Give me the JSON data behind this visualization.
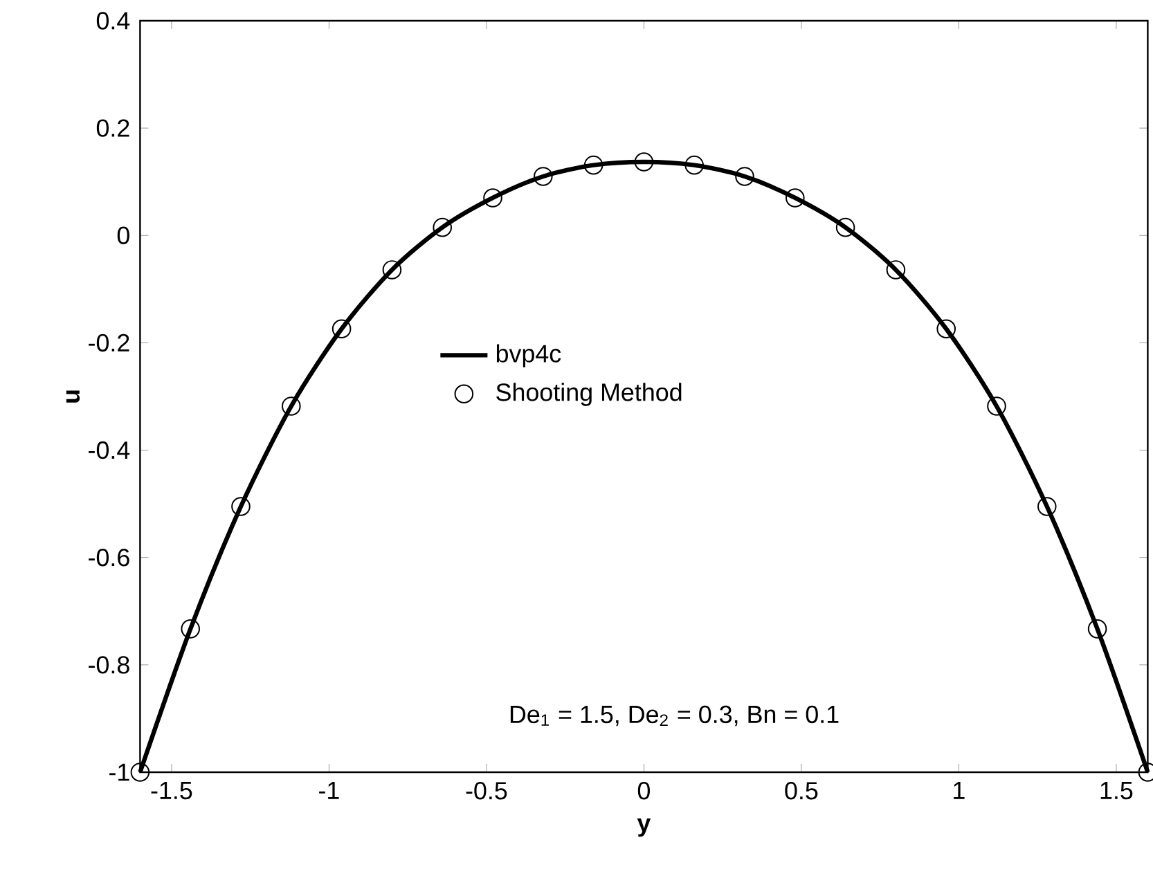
{
  "chart_data": {
    "type": "line",
    "xlabel": "y",
    "ylabel": "u",
    "xlim": [
      -1.6,
      1.6
    ],
    "ylim": [
      -1,
      0.4
    ],
    "xticks": [
      -1.5,
      -1,
      -0.5,
      0,
      0.5,
      1,
      1.5
    ],
    "yticks": [
      -1,
      -0.8,
      -0.6,
      -0.4,
      -0.2,
      0,
      0.2,
      0.4
    ],
    "grid": false,
    "legend": "top",
    "annotations": [
      "De$_{1}$ = 1.5, De$_{2}$ = 0.3, Bn = 0.1"
    ],
    "series": [
      {
        "name": "bvp4c",
        "color": "#000000",
        "marker": "none",
        "line_style": "solid",
        "x": [
          -1.6,
          -1.44,
          -1.28,
          -1.12,
          -0.96,
          -0.8,
          -0.64,
          -0.48,
          -0.32,
          -0.16,
          0,
          0.16,
          0.32,
          0.48,
          0.64,
          0.8,
          0.96,
          1.12,
          1.28,
          1.44,
          1.6
        ],
        "values": [
          -1,
          -0.733,
          -0.505,
          -0.318,
          -0.174,
          -0.064,
          0.015,
          0.07,
          0.11,
          0.131,
          0.137,
          0.131,
          0.11,
          0.07,
          0.015,
          -0.064,
          -0.174,
          -0.318,
          -0.505,
          -0.733,
          -1
        ]
      },
      {
        "name": "Shooting Method",
        "type": "scatter",
        "color": "#000000",
        "marker": "circle",
        "x": [
          -1.6,
          -1.44,
          -1.28,
          -1.12,
          -0.96,
          -0.8,
          -0.64,
          -0.48,
          -0.32,
          -0.16,
          0,
          0.16,
          0.32,
          0.48,
          0.64,
          0.8,
          0.96,
          1.12,
          1.28,
          1.44,
          1.6
        ],
        "values": [
          -1,
          -0.733,
          -0.505,
          -0.318,
          -0.174,
          -0.064,
          0.015,
          0.07,
          0.11,
          0.131,
          0.137,
          0.131,
          0.11,
          0.07,
          0.015,
          -0.064,
          -0.174,
          -0.318,
          -0.505,
          -0.733,
          -1
        ]
      }
    ]
  }
}
